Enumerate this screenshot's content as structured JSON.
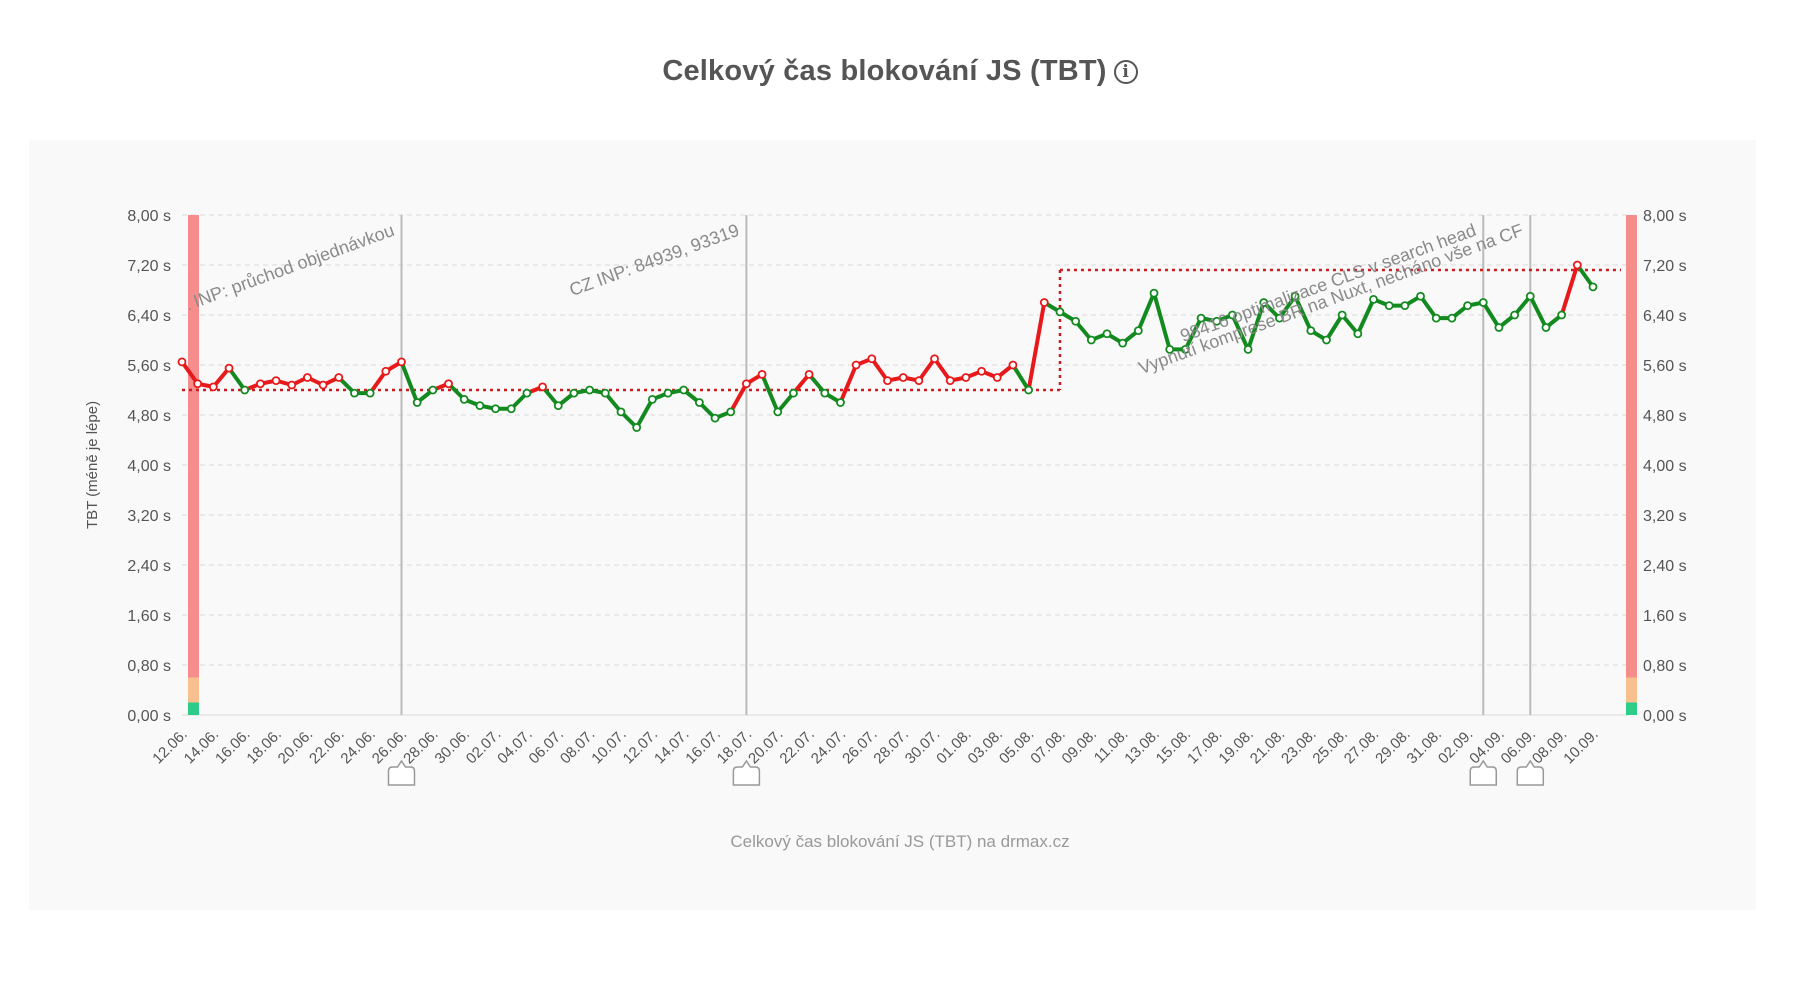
{
  "header": {
    "title": "Celkový čas blokování JS (TBT)",
    "info_icon": "info-icon"
  },
  "caption": "Celkový čas blokování JS (TBT) na drmax.cz",
  "chart_data": {
    "type": "line",
    "title": "Celkový čas blokování JS (TBT)",
    "ylabel": "TBT (méně je lépe)",
    "ylim": [
      0,
      8
    ],
    "y_ticks": [
      "0,00 s",
      "0,80 s",
      "1,60 s",
      "2,40 s",
      "3,20 s",
      "4,00 s",
      "4,80 s",
      "5,60 s",
      "6,40 s",
      "7,20 s",
      "8,00 s"
    ],
    "x_tick_labels": [
      "12.06.",
      "14.06.",
      "16.06.",
      "18.06.",
      "20.06.",
      "22.06.",
      "24.06.",
      "26.06.",
      "28.06.",
      "30.06.",
      "02.07.",
      "04.07.",
      "06.07.",
      "08.07.",
      "10.07.",
      "12.07.",
      "14.07.",
      "16.07.",
      "18.07.",
      "20.07.",
      "22.07.",
      "24.07.",
      "26.07.",
      "28.07.",
      "30.07.",
      "01.08.",
      "03.08.",
      "05.08.",
      "07.08.",
      "09.08.",
      "11.08.",
      "13.08.",
      "15.08.",
      "17.08.",
      "19.08.",
      "21.08.",
      "23.08.",
      "25.08.",
      "27.08.",
      "29.08.",
      "31.08.",
      "02.09.",
      "04.09.",
      "06.09.",
      "08.09.",
      "10.09."
    ],
    "start_date": "12.06.",
    "values": [
      5.65,
      5.3,
      5.25,
      5.55,
      5.2,
      5.3,
      5.35,
      5.28,
      5.4,
      5.28,
      5.4,
      5.15,
      5.15,
      5.5,
      5.65,
      5.0,
      5.2,
      5.3,
      5.05,
      4.95,
      4.9,
      4.9,
      5.15,
      5.25,
      4.95,
      5.15,
      5.2,
      5.15,
      4.85,
      4.6,
      5.05,
      5.15,
      5.2,
      5.0,
      4.75,
      4.85,
      5.3,
      5.45,
      4.85,
      5.15,
      5.45,
      5.15,
      5.0,
      5.6,
      5.7,
      5.35,
      5.4,
      5.35,
      5.7,
      5.35,
      5.4,
      5.5,
      5.4,
      5.6,
      5.2,
      6.6,
      6.45,
      6.3,
      6.0,
      6.1,
      5.95,
      6.15,
      6.75,
      5.85,
      5.85,
      6.35,
      6.3,
      6.4,
      5.85,
      6.6,
      6.35,
      6.7,
      6.15,
      6.0,
      6.4,
      6.1,
      6.65,
      6.55,
      6.55,
      6.7,
      6.35,
      6.35,
      6.55,
      6.6,
      6.2,
      6.4,
      6.7,
      6.2,
      6.4,
      7.2,
      6.85
    ],
    "segments": [
      {
        "from_index": 0,
        "to_index": 56,
        "baseline": 5.2
      },
      {
        "from_index": 56,
        "to_index": 90,
        "baseline": 7.12
      }
    ],
    "colors": {
      "worse": "#e8191b",
      "better": "#138a1f",
      "baseline": "#cc1c22",
      "marker_line": "#bbbbbb",
      "grid": "#d9d9d9",
      "axis_text": "#555555"
    },
    "threshold_bands": [
      {
        "from": 0,
        "to": 0.2,
        "color": "#2ecc8a"
      },
      {
        "from": 0.2,
        "to": 0.6,
        "color": "#f8c08e"
      },
      {
        "from": 0.6,
        "to": 8,
        "color": "#f58d8d"
      }
    ],
    "annotations": [
      {
        "index": 14,
        "text": "CZ INP: průchod objednávkou"
      },
      {
        "index": 36,
        "text": "CZ INP: 84939, 93319"
      },
      {
        "index": 83,
        "text": "98416 optimalizace CLS v search head"
      },
      {
        "index": 86,
        "text": "Vypnutí komprese BR na Nuxt, necháno vše na CF"
      }
    ]
  }
}
